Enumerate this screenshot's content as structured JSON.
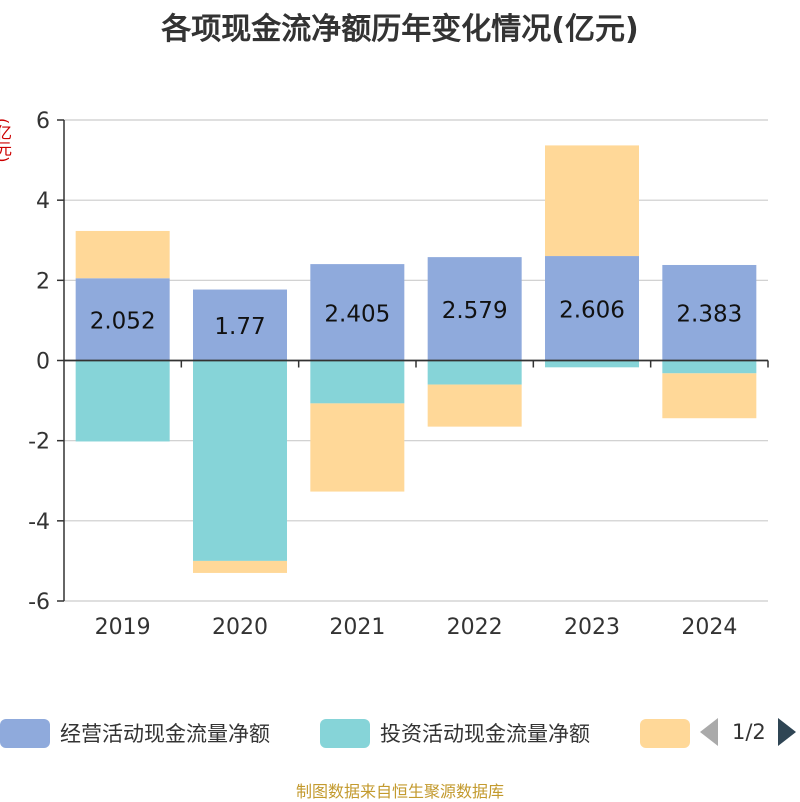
{
  "title": "各项现金流净额历年变化情况(亿元)",
  "unit_label": "(亿元)",
  "chart_data": {
    "type": "bar",
    "stacked": true,
    "categories": [
      "2019",
      "2020",
      "2021",
      "2022",
      "2023",
      "2024"
    ],
    "ylim": [
      -6,
      6
    ],
    "yticks": [
      6,
      4,
      2,
      0,
      -2,
      -4,
      -6
    ],
    "series": [
      {
        "name": "经营活动现金流量净额",
        "color": "#8faadc",
        "values": [
          2.052,
          1.77,
          2.405,
          2.579,
          2.606,
          2.383
        ],
        "labels": [
          "2.052",
          "1.77",
          "2.405",
          "2.579",
          "2.606",
          "2.383"
        ]
      },
      {
        "name": "投资活动现金流量净额",
        "color": "#86d4d8",
        "values": [
          -2.02,
          -5.0,
          -1.07,
          -0.6,
          -0.17,
          -0.32
        ]
      },
      {
        "name": "",
        "color": "#ffd898",
        "values": [
          1.18,
          -0.3,
          -2.2,
          -1.05,
          2.76,
          -1.12
        ]
      }
    ]
  },
  "legend": {
    "items": [
      {
        "label": "经营活动现金流量净额",
        "color": "#8faadc"
      },
      {
        "label": "投资活动现金流量净额",
        "color": "#86d4d8"
      },
      {
        "label": "",
        "color": "#ffd898"
      }
    ],
    "page": "1/2"
  },
  "source": "制图数据来自恒生聚源数据库"
}
